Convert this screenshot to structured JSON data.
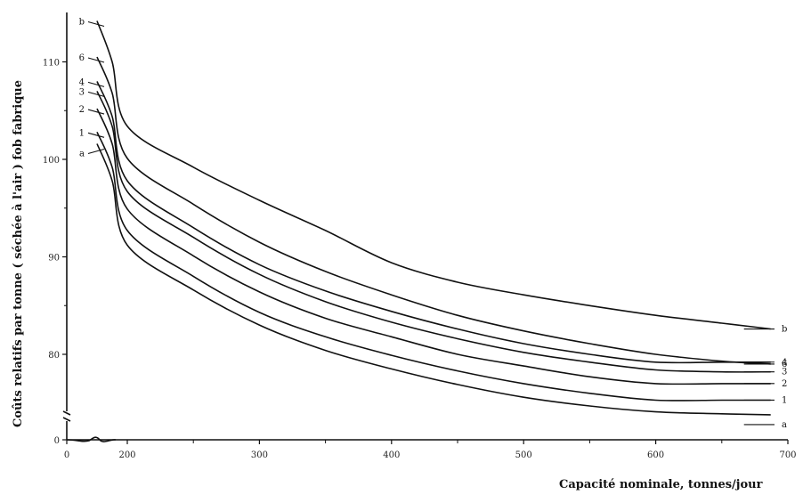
{
  "chart_data": {
    "type": "line",
    "xlabel": "Capacité nominale, tonnes/jour",
    "ylabel": "Coûts relatifs par tonne ( séchée à l'air ) fob fabrique",
    "xlim": [
      0,
      700
    ],
    "ylim": [
      0,
      115
    ],
    "axis_break": "y-axis broken between 0 and 80",
    "x_ticks": [
      0,
      200,
      300,
      400,
      500,
      600,
      700
    ],
    "y_ticks": [
      0,
      80,
      90,
      100,
      110
    ],
    "grid": false,
    "legend": "labels at curve ends (left and right)",
    "x": [
      100,
      150,
      200,
      250,
      300,
      350,
      400,
      450,
      500,
      550,
      600,
      650,
      687
    ],
    "series": [
      {
        "name": "b",
        "values": [
          114.2,
          110.0,
          103.4,
          99.2,
          95.8,
          92.7,
          89.4,
          87.4,
          86.1,
          85.0,
          84.0,
          83.2,
          82.6
        ]
      },
      {
        "name": "6",
        "values": [
          110.5,
          106.8,
          100.1,
          95.4,
          91.5,
          88.5,
          86.1,
          84.0,
          82.4,
          81.1,
          80.0,
          79.3,
          79.0
        ]
      },
      {
        "name": "4",
        "values": [
          108.0,
          104.4,
          97.8,
          93.0,
          89.2,
          86.5,
          84.4,
          82.6,
          81.1,
          80.0,
          79.2,
          79.2,
          79.2
        ]
      },
      {
        "name": "3",
        "values": [
          107.0,
          103.4,
          96.7,
          92.0,
          88.2,
          85.4,
          83.3,
          81.6,
          80.2,
          79.2,
          78.4,
          78.2,
          78.2
        ]
      },
      {
        "name": "2",
        "values": [
          105.2,
          101.6,
          94.9,
          90.1,
          86.4,
          83.7,
          81.8,
          80.0,
          78.8,
          77.7,
          77.0,
          77.0,
          77.0
        ]
      },
      {
        "name": "1",
        "values": [
          102.8,
          99.2,
          92.7,
          88.0,
          84.3,
          81.8,
          79.9,
          78.3,
          77.0,
          76.0,
          75.3,
          75.3,
          75.3
        ]
      },
      {
        "name": "a",
        "values": [
          101.6,
          97.8,
          91.2,
          86.6,
          83.0,
          80.4,
          78.5,
          76.9,
          75.6,
          74.7,
          74.1,
          73.9,
          73.8
        ]
      }
    ]
  }
}
